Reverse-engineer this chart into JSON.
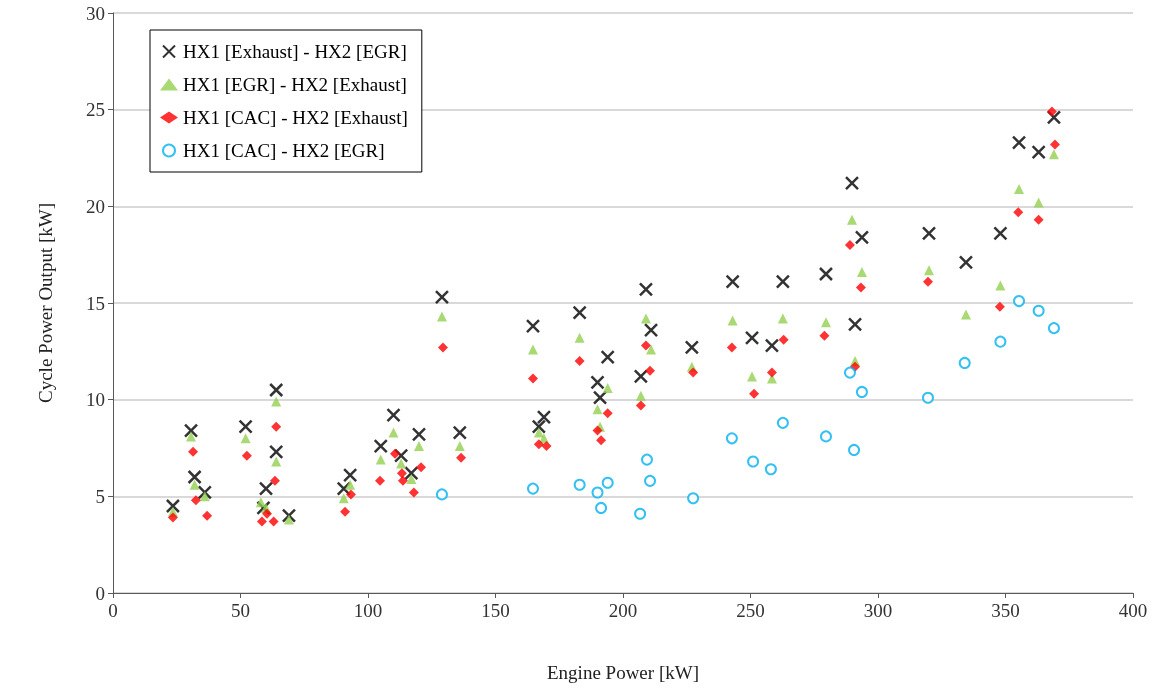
{
  "chart_data": {
    "type": "scatter",
    "xlabel": "Engine Power [kW]",
    "ylabel": "Cycle Power Output [kW]",
    "xlim": [
      0,
      400
    ],
    "xticks": [
      0,
      50,
      100,
      150,
      200,
      250,
      300,
      350,
      400
    ],
    "ylim": [
      0,
      30
    ],
    "yticks": [
      0,
      5,
      10,
      15,
      20,
      25,
      30
    ],
    "grid": "y",
    "legend": "top left",
    "series": [
      {
        "name": "HX1 [Exhaust] - HX2 [EGR]",
        "color": "#000000",
        "marker": "cross",
        "x": [
          23.5,
          30.6,
          32,
          36,
          52,
          60,
          59,
          64,
          64,
          69,
          90.5,
          93,
          105,
          110,
          113,
          117,
          120,
          136,
          129,
          164.7,
          167,
          169,
          183,
          190,
          191,
          194,
          207,
          209,
          211,
          227,
          243,
          250.6,
          258.4,
          262.7,
          279.6,
          289.8,
          291,
          293.7,
          320,
          334.5,
          348,
          355.3,
          363,
          369
        ],
        "values": [
          4.5,
          8.4,
          6.0,
          5.2,
          8.6,
          5.4,
          4.4,
          7.3,
          10.5,
          4.0,
          5.4,
          6.1,
          7.6,
          9.2,
          7.1,
          6.2,
          8.2,
          8.3,
          15.3,
          13.8,
          8.6,
          9.1,
          14.5,
          10.9,
          10.1,
          12.2,
          11.2,
          15.7,
          13.6,
          12.7,
          16.1,
          13.2,
          12.8,
          16.1,
          16.5,
          21.2,
          13.9,
          18.4,
          18.6,
          17.1,
          18.6,
          23.3,
          22.8,
          24.6
        ]
      },
      {
        "name": "HX1 [EGR] - HX2 [Exhaust]",
        "color": "#92d050",
        "marker": "triangle",
        "x": [
          23.5,
          30.6,
          32,
          36,
          52,
          58,
          60,
          64,
          64,
          69,
          90.5,
          93,
          105,
          110,
          113,
          117,
          120,
          129,
          136,
          164.7,
          167,
          169,
          183,
          190,
          191,
          194,
          207,
          209,
          211,
          227,
          243,
          250.6,
          258.4,
          262.7,
          279.6,
          289.8,
          291,
          293.7,
          320,
          334.5,
          348,
          355.3,
          363,
          369
        ],
        "values": [
          4.2,
          8.1,
          5.6,
          5.0,
          8.0,
          4.7,
          4.4,
          6.8,
          9.9,
          3.8,
          4.9,
          5.6,
          6.9,
          8.3,
          6.7,
          5.9,
          7.6,
          14.3,
          7.6,
          12.6,
          8.3,
          8.0,
          13.2,
          9.5,
          8.6,
          10.6,
          10.2,
          14.2,
          12.6,
          11.7,
          14.1,
          11.2,
          11.1,
          14.2,
          14.0,
          19.3,
          12.0,
          16.6,
          16.7,
          14.4,
          15.9,
          20.9,
          20.2,
          22.7
        ]
      },
      {
        "name": "HX1 [CAC] - HX2 [Exhaust]",
        "color": "#ff0000",
        "marker": "diamond",
        "x": [
          23.5,
          31.4,
          32.5,
          36.9,
          52.5,
          58.4,
          60.4,
          63,
          63.5,
          64,
          91,
          93.3,
          104.7,
          110.6,
          113.3,
          113.7,
          118,
          120.8,
          129.4,
          136.5,
          164.7,
          167,
          170,
          183,
          190,
          191.4,
          194,
          207,
          209,
          210.6,
          227.5,
          242.7,
          251.4,
          258.4,
          263,
          279,
          289,
          291,
          293.3,
          319.6,
          347.8,
          355,
          363,
          368.2,
          369.4
        ],
        "values": [
          3.9,
          7.3,
          4.8,
          4.0,
          7.1,
          3.7,
          4.1,
          3.7,
          5.8,
          8.6,
          4.2,
          5.1,
          5.8,
          7.2,
          6.2,
          5.8,
          5.2,
          6.5,
          12.7,
          7.0,
          11.1,
          7.7,
          7.6,
          12.0,
          8.4,
          7.9,
          9.3,
          9.7,
          12.8,
          11.5,
          11.4,
          12.7,
          10.3,
          11.4,
          13.1,
          13.3,
          18.0,
          11.7,
          15.8,
          16.1,
          14.8,
          19.7,
          19.3,
          24.9,
          23.2
        ]
      },
      {
        "name": "HX1 [CAC] - HX2 [EGR]",
        "color": "#00b0f0",
        "marker": "circle",
        "x": [
          129,
          164.7,
          183,
          190,
          191.4,
          194,
          206.7,
          209.4,
          210.6,
          227.5,
          242.7,
          251,
          258,
          262.7,
          279.6,
          289,
          290.6,
          293.7,
          319.6,
          334,
          348,
          355.3,
          363,
          369
        ],
        "values": [
          5.1,
          5.4,
          5.6,
          5.2,
          4.4,
          5.7,
          4.1,
          6.9,
          5.8,
          4.9,
          8.0,
          6.8,
          6.4,
          8.8,
          8.1,
          11.4,
          7.4,
          10.4,
          10.1,
          11.9,
          13.0,
          15.1,
          14.6,
          13.7
        ]
      }
    ]
  }
}
